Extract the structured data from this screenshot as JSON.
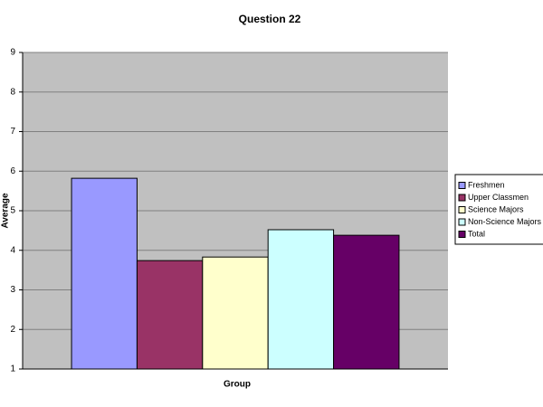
{
  "chart_data": {
    "type": "bar",
    "title": "Question 22",
    "x_label": "Group",
    "y_label": "Average",
    "categories": [
      null
    ],
    "series": [
      {
        "name": "Freshmen",
        "color": "#9999ff",
        "values": [
          5.82
        ]
      },
      {
        "name": "Upper Classmen",
        "color": "#993366",
        "values": [
          3.74
        ]
      },
      {
        "name": "Science Majors",
        "color": "#ffffcc",
        "values": [
          3.83
        ]
      },
      {
        "name": "Non-Science Majors",
        "color": "#ccffff",
        "values": [
          4.52
        ]
      },
      {
        "name": "Total",
        "color": "#660066",
        "values": [
          4.38
        ]
      }
    ],
    "ylim": [
      1,
      9
    ],
    "yticks": [
      1,
      2,
      3,
      4,
      5,
      6,
      7,
      8,
      9
    ],
    "grid": true,
    "legend": "right"
  }
}
